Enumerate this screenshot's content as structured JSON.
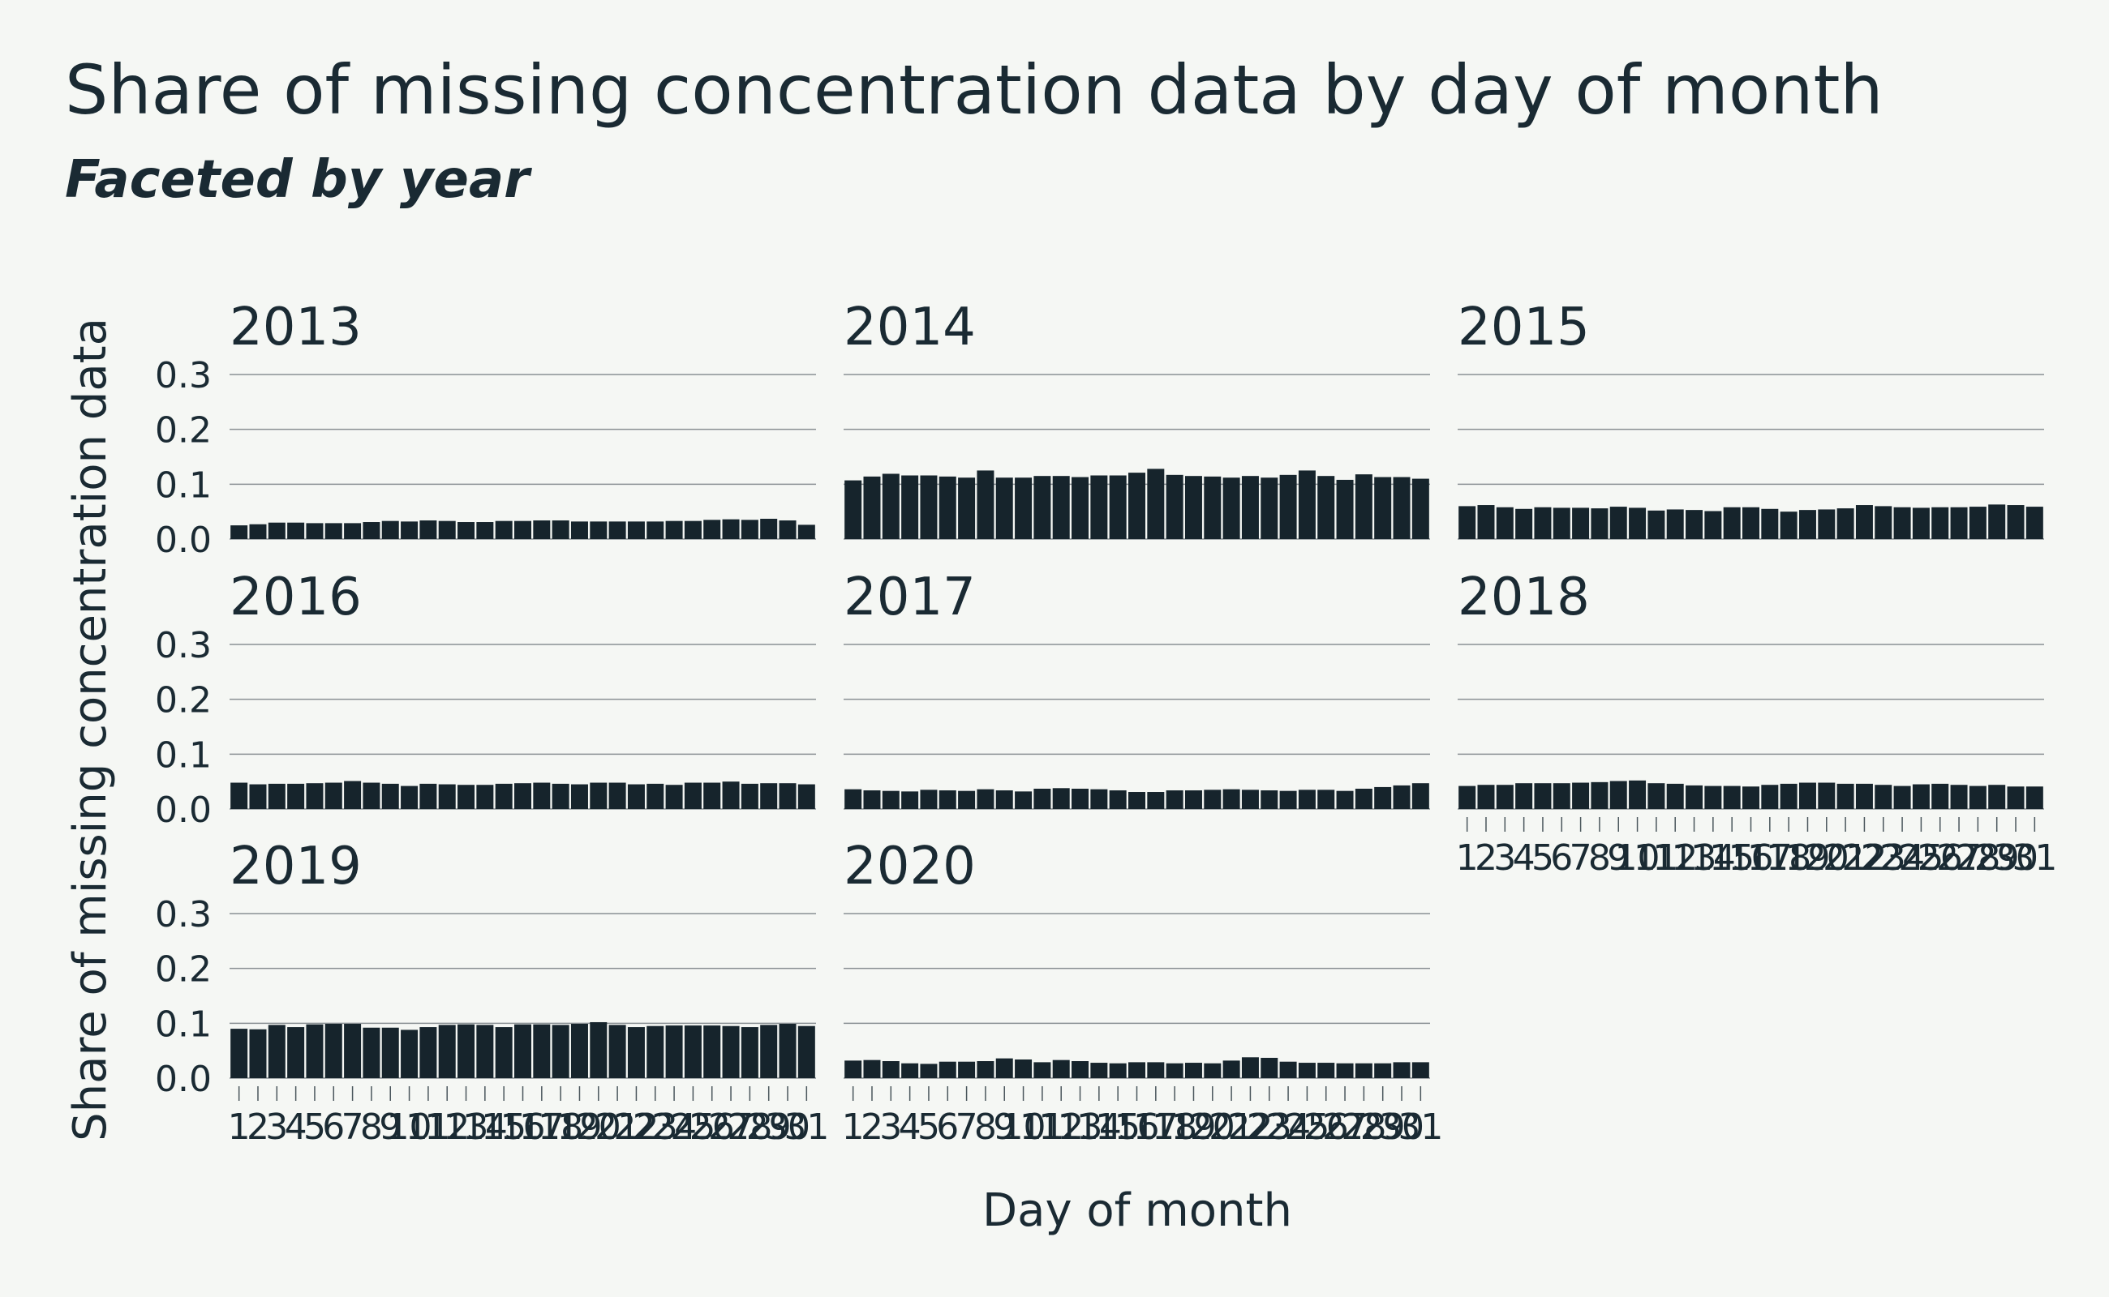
{
  "chart_data": {
    "type": "bar",
    "title": "Share of missing concentration data by day of month",
    "subtitle": "Faceted by year",
    "xlabel": "Day of month",
    "ylabel": "Share of missing concentration data",
    "ylim": [
      0,
      0.3
    ],
    "yticks": [
      "0.0",
      "0.1",
      "0.2",
      "0.3"
    ],
    "categories": [
      "1",
      "2",
      "3",
      "4",
      "5",
      "6",
      "7",
      "8",
      "9",
      "10",
      "11",
      "12",
      "13",
      "14",
      "15",
      "16",
      "17",
      "18",
      "19",
      "20",
      "21",
      "22",
      "23",
      "24",
      "25",
      "26",
      "27",
      "28",
      "29",
      "30",
      "31"
    ],
    "grid": "horizontal",
    "bar_color": "#16242c",
    "facets": [
      {
        "name": "2013",
        "values": [
          0.025,
          0.027,
          0.03,
          0.03,
          0.029,
          0.029,
          0.029,
          0.031,
          0.033,
          0.032,
          0.034,
          0.033,
          0.031,
          0.031,
          0.033,
          0.033,
          0.034,
          0.034,
          0.032,
          0.032,
          0.032,
          0.032,
          0.032,
          0.033,
          0.033,
          0.035,
          0.036,
          0.035,
          0.037,
          0.034,
          0.026
        ]
      },
      {
        "name": "2014",
        "values": [
          0.107,
          0.114,
          0.119,
          0.116,
          0.116,
          0.114,
          0.112,
          0.125,
          0.112,
          0.112,
          0.115,
          0.115,
          0.113,
          0.116,
          0.116,
          0.121,
          0.128,
          0.117,
          0.115,
          0.114,
          0.112,
          0.115,
          0.112,
          0.117,
          0.125,
          0.115,
          0.108,
          0.118,
          0.113,
          0.113,
          0.11
        ]
      },
      {
        "name": "2015",
        "values": [
          0.06,
          0.062,
          0.058,
          0.055,
          0.058,
          0.057,
          0.057,
          0.056,
          0.059,
          0.057,
          0.052,
          0.054,
          0.053,
          0.051,
          0.058,
          0.058,
          0.055,
          0.05,
          0.053,
          0.054,
          0.056,
          0.062,
          0.06,
          0.058,
          0.057,
          0.058,
          0.058,
          0.059,
          0.063,
          0.062,
          0.059
        ]
      },
      {
        "name": "2016",
        "values": [
          0.048,
          0.045,
          0.046,
          0.046,
          0.047,
          0.048,
          0.051,
          0.048,
          0.046,
          0.042,
          0.046,
          0.045,
          0.044,
          0.044,
          0.046,
          0.047,
          0.048,
          0.046,
          0.045,
          0.048,
          0.048,
          0.045,
          0.046,
          0.044,
          0.048,
          0.048,
          0.05,
          0.046,
          0.047,
          0.047,
          0.045
        ]
      },
      {
        "name": "2017",
        "values": [
          0.036,
          0.034,
          0.033,
          0.032,
          0.035,
          0.034,
          0.033,
          0.036,
          0.034,
          0.032,
          0.037,
          0.038,
          0.037,
          0.036,
          0.034,
          0.031,
          0.031,
          0.034,
          0.034,
          0.035,
          0.036,
          0.035,
          0.034,
          0.033,
          0.035,
          0.035,
          0.033,
          0.037,
          0.04,
          0.043,
          0.047
        ]
      },
      {
        "name": "2018",
        "values": [
          0.042,
          0.044,
          0.044,
          0.047,
          0.047,
          0.047,
          0.048,
          0.049,
          0.051,
          0.052,
          0.047,
          0.046,
          0.043,
          0.042,
          0.042,
          0.041,
          0.044,
          0.046,
          0.048,
          0.048,
          0.046,
          0.046,
          0.044,
          0.042,
          0.045,
          0.046,
          0.044,
          0.042,
          0.044,
          0.041,
          0.041
        ]
      },
      {
        "name": "2019",
        "values": [
          0.09,
          0.089,
          0.097,
          0.093,
          0.098,
          0.099,
          0.099,
          0.092,
          0.092,
          0.088,
          0.093,
          0.097,
          0.098,
          0.097,
          0.093,
          0.098,
          0.098,
          0.097,
          0.099,
          0.102,
          0.097,
          0.093,
          0.095,
          0.096,
          0.096,
          0.096,
          0.095,
          0.093,
          0.097,
          0.099,
          0.095
        ]
      },
      {
        "name": "2020",
        "values": [
          0.032,
          0.033,
          0.031,
          0.027,
          0.026,
          0.03,
          0.03,
          0.031,
          0.036,
          0.034,
          0.029,
          0.033,
          0.031,
          0.028,
          0.027,
          0.029,
          0.029,
          0.027,
          0.028,
          0.027,
          0.032,
          0.038,
          0.037,
          0.03,
          0.028,
          0.028,
          0.027,
          0.027,
          0.027,
          0.029,
          0.029
        ]
      }
    ]
  }
}
